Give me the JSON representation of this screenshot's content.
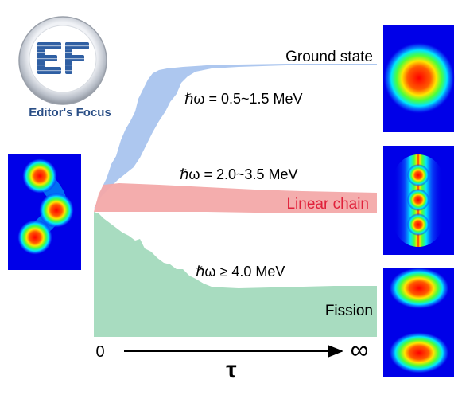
{
  "logo": {
    "caption": "Editor's Focus",
    "mark": "EF"
  },
  "states": {
    "ground": {
      "label": "Ground state",
      "range": "ℏω = 0.5~1.5 MeV",
      "color": "#a9c4ee"
    },
    "linear": {
      "label": "Linear chain",
      "range": "ℏω = 2.0~3.5 MeV",
      "color": "#f3a9a9"
    },
    "fission": {
      "label": "Fission",
      "range": "ℏω ≥ 4.0 MeV",
      "color": "#a8dcc0"
    }
  },
  "axis": {
    "start": "0",
    "symbol": "τ",
    "end": "∞"
  }
}
